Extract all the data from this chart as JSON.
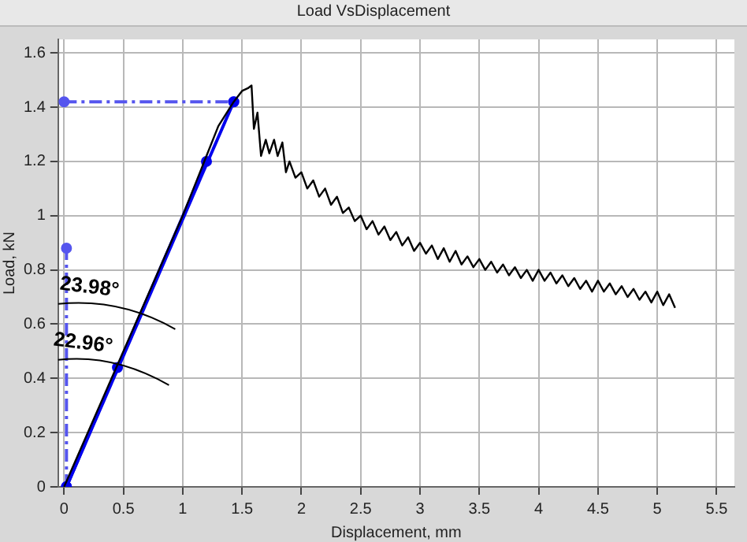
{
  "chart_data": {
    "type": "line",
    "title": "Load VsDisplacement",
    "xlabel": "Displacement, mm",
    "ylabel": "Load, kN",
    "xlim": [
      -0.05,
      5.65
    ],
    "xticks": [
      0,
      0.5,
      1,
      1.5,
      2,
      2.5,
      3,
      3.5,
      4,
      4.5,
      5,
      5.5
    ],
    "ylim": [
      0,
      1.65
    ],
    "yticks": [
      0,
      0.2,
      0.4,
      0.6,
      0.8,
      1,
      1.2,
      1.4,
      1.6
    ],
    "grid": true,
    "legend": false,
    "marker": "circle",
    "line_style": "solid",
    "annotations": [
      "23.98°",
      "22.96°"
    ],
    "series": [
      {
        "color": "#000000",
        "marker": "none",
        "x": [
          0,
          0.3,
          0.6,
          1.0,
          1.2,
          1.3,
          1.43,
          1.5,
          1.55,
          1.58,
          1.6,
          1.63,
          1.66,
          1.7,
          1.73,
          1.77,
          1.8,
          1.84,
          1.87,
          1.9,
          1.95,
          2.0,
          2.05,
          2.1,
          2.15,
          2.2,
          2.25,
          2.3,
          2.35,
          2.4,
          2.45,
          2.5,
          2.55,
          2.6,
          2.65,
          2.7,
          2.75,
          2.8,
          2.85,
          2.9,
          2.95,
          3.0,
          3.05,
          3.1,
          3.15,
          3.2,
          3.25,
          3.3,
          3.35,
          3.4,
          3.45,
          3.5,
          3.55,
          3.6,
          3.65,
          3.7,
          3.75,
          3.8,
          3.85,
          3.9,
          3.95,
          4.0,
          4.05,
          4.1,
          4.15,
          4.2,
          4.25,
          4.3,
          4.35,
          4.4,
          4.45,
          4.5,
          4.55,
          4.6,
          4.65,
          4.7,
          4.75,
          4.8,
          4.85,
          4.9,
          4.95,
          5.0,
          5.05,
          5.1,
          5.15
        ],
        "values": [
          0,
          0.3,
          0.6,
          1.0,
          1.22,
          1.33,
          1.42,
          1.46,
          1.47,
          1.48,
          1.32,
          1.38,
          1.22,
          1.28,
          1.23,
          1.28,
          1.22,
          1.27,
          1.16,
          1.2,
          1.14,
          1.16,
          1.1,
          1.13,
          1.07,
          1.1,
          1.04,
          1.07,
          1.01,
          1.03,
          0.98,
          1.0,
          0.95,
          0.98,
          0.93,
          0.96,
          0.91,
          0.94,
          0.89,
          0.92,
          0.87,
          0.9,
          0.86,
          0.89,
          0.84,
          0.88,
          0.83,
          0.87,
          0.82,
          0.85,
          0.81,
          0.84,
          0.8,
          0.83,
          0.79,
          0.82,
          0.78,
          0.81,
          0.77,
          0.8,
          0.76,
          0.8,
          0.76,
          0.79,
          0.75,
          0.78,
          0.74,
          0.77,
          0.73,
          0.76,
          0.72,
          0.76,
          0.72,
          0.75,
          0.71,
          0.74,
          0.7,
          0.73,
          0.69,
          0.72,
          0.68,
          0.72,
          0.67,
          0.71,
          0.66
        ]
      },
      {
        "color": "#0000ee",
        "x": [
          0.02,
          1.43
        ],
        "values": [
          0,
          1.42
        ]
      },
      {
        "color": "#0000ee",
        "x": [
          0.02,
          0.45,
          1.2
        ],
        "values": [
          0,
          0.44,
          1.2
        ]
      },
      {
        "color": "#5555ee",
        "line_style": "dashed",
        "x": [
          0,
          1.43
        ],
        "values": [
          1.42,
          1.42
        ]
      },
      {
        "color": "#5555ee",
        "line_style": "dashed",
        "x": [
          0.02,
          0.02
        ],
        "values": [
          0,
          0.88
        ]
      }
    ]
  }
}
